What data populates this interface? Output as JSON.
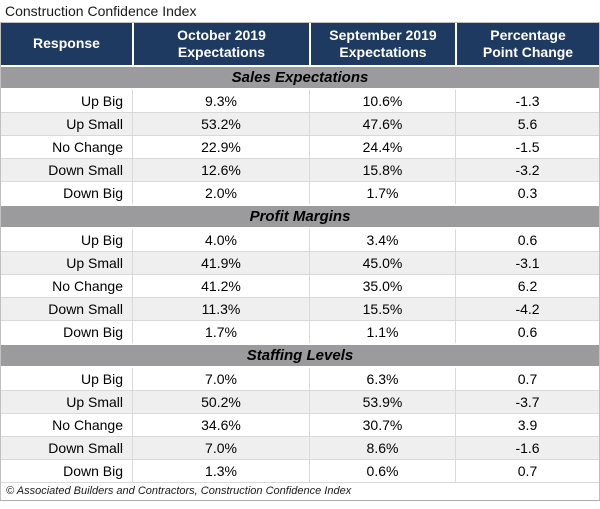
{
  "title": "Construction Confidence Index",
  "footer": "© Associated Builders and Contractors, Construction Confidence Index",
  "colors": {
    "header_bg": "#1F3A60",
    "header_text": "#FFFFFF",
    "section_bg": "#9B9B9E",
    "alt_row_bg": "#EFEFEF",
    "row_divider": "#D9D9D9",
    "outer_border": "#C0C0C0"
  },
  "table": {
    "headers": [
      "Response",
      "October 2019\nExpectations",
      "September 2019\nExpectations",
      "Percentage\nPoint Change"
    ],
    "sections": [
      {
        "label": "Sales Expectations",
        "rows": [
          {
            "response": "Up Big",
            "october": "9.3%",
            "september": "10.6%",
            "change": "-1.3"
          },
          {
            "response": "Up Small",
            "october": "53.2%",
            "september": "47.6%",
            "change": "5.6"
          },
          {
            "response": "No Change",
            "october": "22.9%",
            "september": "24.4%",
            "change": "-1.5"
          },
          {
            "response": "Down Small",
            "october": "12.6%",
            "september": "15.8%",
            "change": "-3.2"
          },
          {
            "response": "Down Big",
            "october": "2.0%",
            "september": "1.7%",
            "change": "0.3"
          }
        ]
      },
      {
        "label": "Profit Margins",
        "rows": [
          {
            "response": "Up Big",
            "october": "4.0%",
            "september": "3.4%",
            "change": "0.6"
          },
          {
            "response": "Up Small",
            "october": "41.9%",
            "september": "45.0%",
            "change": "-3.1"
          },
          {
            "response": "No Change",
            "october": "41.2%",
            "september": "35.0%",
            "change": "6.2"
          },
          {
            "response": "Down Small",
            "october": "11.3%",
            "september": "15.5%",
            "change": "-4.2"
          },
          {
            "response": "Down Big",
            "october": "1.7%",
            "september": "1.1%",
            "change": "0.6"
          }
        ]
      },
      {
        "label": "Staffing Levels",
        "rows": [
          {
            "response": "Up Big",
            "october": "7.0%",
            "september": "6.3%",
            "change": "0.7"
          },
          {
            "response": "Up Small",
            "october": "50.2%",
            "september": "53.9%",
            "change": "-3.7"
          },
          {
            "response": "No Change",
            "october": "34.6%",
            "september": "30.7%",
            "change": "3.9"
          },
          {
            "response": "Down Small",
            "october": "7.0%",
            "september": "8.6%",
            "change": "-1.6"
          },
          {
            "response": "Down Big",
            "october": "1.3%",
            "september": "0.6%",
            "change": "0.7"
          }
        ]
      }
    ]
  },
  "chart_data": {
    "type": "table",
    "title": "Construction Confidence Index",
    "columns": [
      "Response",
      "October 2019 Expectations",
      "September 2019 Expectations",
      "Percentage Point Change"
    ],
    "sections": [
      {
        "name": "Sales Expectations",
        "rows": [
          [
            "Up Big",
            "9.3%",
            "10.6%",
            -1.3
          ],
          [
            "Up Small",
            "53.2%",
            "47.6%",
            5.6
          ],
          [
            "No Change",
            "22.9%",
            "24.4%",
            -1.5
          ],
          [
            "Down Small",
            "12.6%",
            "15.8%",
            -3.2
          ],
          [
            "Down Big",
            "2.0%",
            "1.7%",
            0.3
          ]
        ]
      },
      {
        "name": "Profit Margins",
        "rows": [
          [
            "Up Big",
            "4.0%",
            "3.4%",
            0.6
          ],
          [
            "Up Small",
            "41.9%",
            "45.0%",
            -3.1
          ],
          [
            "No Change",
            "41.2%",
            "35.0%",
            6.2
          ],
          [
            "Down Small",
            "11.3%",
            "15.5%",
            -4.2
          ],
          [
            "Down Big",
            "1.7%",
            "1.1%",
            0.6
          ]
        ]
      },
      {
        "name": "Staffing Levels",
        "rows": [
          [
            "Up Big",
            "7.0%",
            "6.3%",
            0.7
          ],
          [
            "Up Small",
            "50.2%",
            "53.9%",
            -3.7
          ],
          [
            "No Change",
            "34.6%",
            "30.7%",
            3.9
          ],
          [
            "Down Small",
            "7.0%",
            "8.6%",
            -1.6
          ],
          [
            "Down Big",
            "1.3%",
            "0.6%",
            0.7
          ]
        ]
      }
    ],
    "source": "© Associated Builders and Contractors, Construction Confidence Index"
  }
}
